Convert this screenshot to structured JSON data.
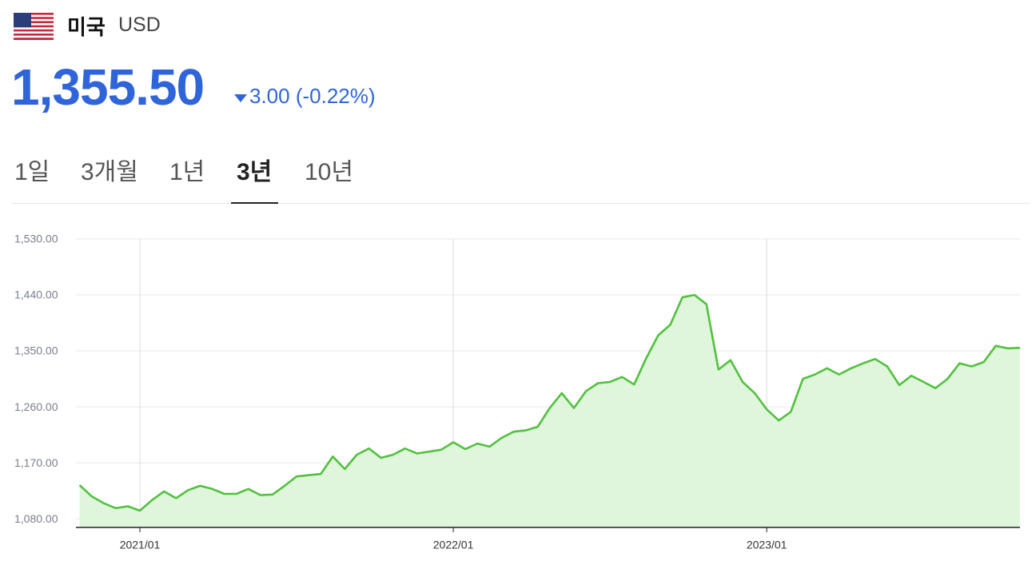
{
  "header": {
    "country": "미국",
    "currency": "USD",
    "price": "1,355.50",
    "change": "3.00 (-0.22%)"
  },
  "tabs": [
    {
      "label": "1일",
      "selected": false
    },
    {
      "label": "3개월",
      "selected": false
    },
    {
      "label": "1년",
      "selected": false
    },
    {
      "label": "3년",
      "selected": true
    },
    {
      "label": "10년",
      "selected": false
    }
  ],
  "chart_data": {
    "type": "line",
    "categories": [
      null,
      null,
      null,
      null,
      null,
      "2021/01",
      null,
      null,
      null,
      null,
      null,
      null,
      null,
      null,
      null,
      null,
      null,
      null,
      null,
      null,
      null,
      null,
      null,
      null,
      null,
      null,
      null,
      null,
      null,
      null,
      null,
      "2022/01",
      null,
      null,
      null,
      null,
      null,
      null,
      null,
      null,
      null,
      null,
      null,
      null,
      null,
      null,
      null,
      null,
      null,
      null,
      null,
      null,
      null,
      null,
      null,
      null,
      null,
      "2023/01",
      null,
      null,
      null,
      null,
      null,
      null,
      null,
      null,
      null,
      null,
      null,
      null,
      null,
      null,
      null,
      null,
      null,
      null,
      null,
      null,
      null
    ],
    "values": [
      1134,
      1116,
      1105,
      1097,
      1100,
      1093,
      1110,
      1124,
      1113,
      1126,
      1133,
      1128,
      1120,
      1120,
      1128,
      1118,
      1119,
      1133,
      1148,
      1150,
      1152,
      1180,
      1160,
      1183,
      1193,
      1178,
      1183,
      1193,
      1185,
      1188,
      1191,
      1203,
      1192,
      1201,
      1196,
      1210,
      1220,
      1222,
      1228,
      1258,
      1282,
      1258,
      1285,
      1298,
      1300,
      1308,
      1296,
      1338,
      1375,
      1392,
      1436,
      1440,
      1425,
      1320,
      1335,
      1300,
      1282,
      1256,
      1238,
      1252,
      1305,
      1312,
      1322,
      1312,
      1322,
      1330,
      1337,
      1325,
      1295,
      1310,
      1300,
      1290,
      1305,
      1330,
      1325,
      1332,
      1358,
      1354,
      1355
    ],
    "color": "#52c13f",
    "area_color": "#dff5dc",
    "ylim": [
      1066,
      1530
    ],
    "yticks": [
      {
        "value": 1080,
        "label": "1,080.00"
      },
      {
        "value": 1170,
        "label": "1,170.00"
      },
      {
        "value": 1260,
        "label": "1,260.00"
      },
      {
        "value": 1350,
        "label": "1,350.00"
      },
      {
        "value": 1440,
        "label": "1,440.00"
      },
      {
        "value": 1530,
        "label": "1,530.00"
      }
    ],
    "grid": true
  }
}
